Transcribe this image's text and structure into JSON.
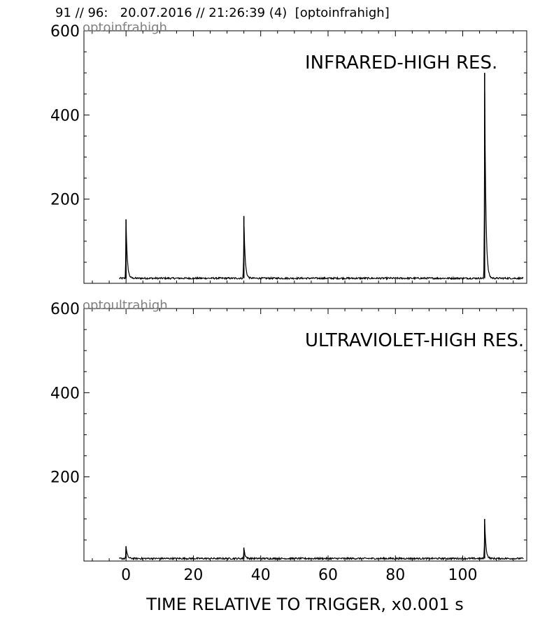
{
  "header": {
    "text": "91 // 96:   20.07.2016 // 21:26:39 (4)  [optoinfrahigh]"
  },
  "xlabel": "TIME RELATIVE TO TRIGGER,   x0.001 s",
  "chart_data": [
    {
      "type": "line",
      "channel_label": "optoinfrahigh",
      "title": "INFRARED-HIGH RES.",
      "xlim": [
        -12.5,
        119
      ],
      "ylim": [
        0,
        600
      ],
      "yticks": [
        200,
        400,
        600
      ],
      "xticks": [
        0,
        20,
        40,
        60,
        80,
        100
      ],
      "baseline": 12,
      "x_range": [
        -2,
        118
      ],
      "peaks": [
        {
          "x": 0.0,
          "y": 152
        },
        {
          "x": 35.0,
          "y": 160
        },
        {
          "x": 106.5,
          "y": 500
        }
      ],
      "color": "#000000"
    },
    {
      "type": "line",
      "channel_label": "optoultrahigh",
      "title": "ULTRAVIOLET-HIGH RES.",
      "xlim": [
        -12.5,
        119
      ],
      "ylim": [
        0,
        600
      ],
      "yticks": [
        200,
        400,
        600
      ],
      "xticks": [
        0,
        20,
        40,
        60,
        80,
        100
      ],
      "baseline": 6,
      "x_range": [
        -2,
        118
      ],
      "peaks": [
        {
          "x": 0.0,
          "y": 35
        },
        {
          "x": 35.0,
          "y": 32
        },
        {
          "x": 106.5,
          "y": 100
        }
      ],
      "color": "#000000"
    }
  ]
}
